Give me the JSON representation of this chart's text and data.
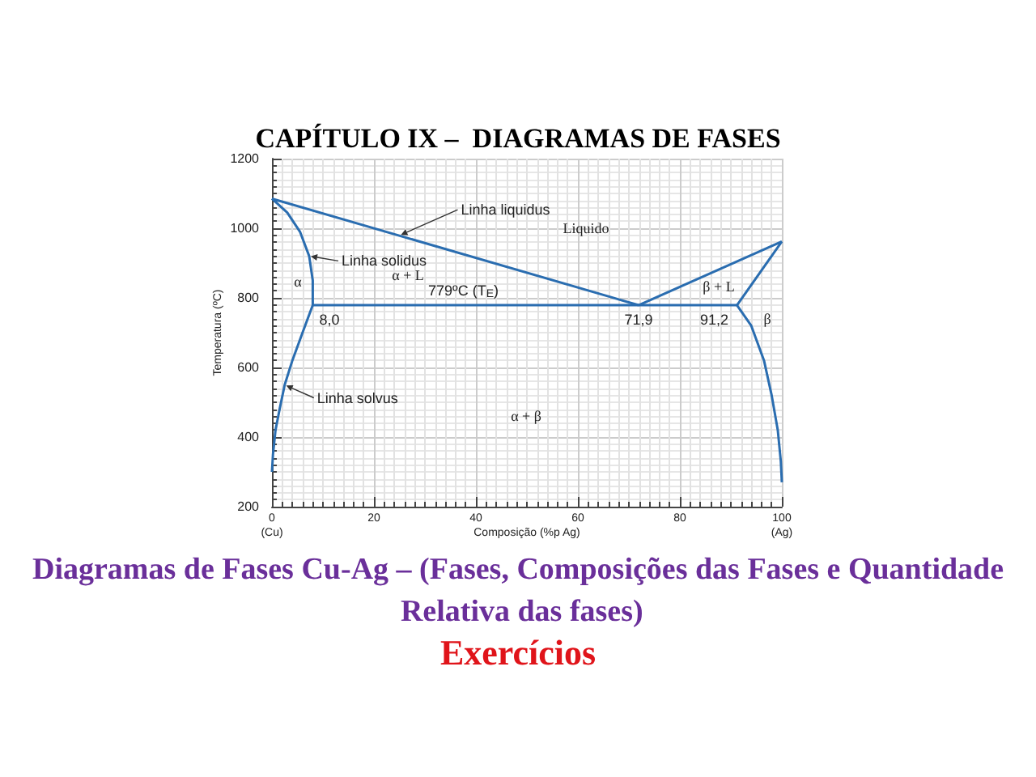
{
  "chart_data": {
    "type": "line",
    "title": "CAPÍTULO IX –  DIAGRAMAS DE FASES",
    "subtitle": "Diagramas de Fases Cu-Ag – (Fases, Composições das Fases e Quantidade Relativa das fases)",
    "xlabel": "Composição (%p Ag)",
    "ylabel": "Temperatura (ºC)",
    "xlim": [
      0,
      100
    ],
    "xticks": [
      {
        "value": 0,
        "label": "0\n(Cu)"
      },
      20,
      40,
      60,
      80,
      {
        "value": 100,
        "label": "100\n(Ag)"
      }
    ],
    "ylim": [
      200,
      1200
    ],
    "yticks": [
      200,
      400,
      600,
      800,
      1000,
      1200
    ],
    "grid": true,
    "series": [
      {
        "color": "#2a6db0",
        "x": [
          0,
          71.9
        ],
        "values": [
          1085,
          779
        ]
      },
      {
        "color": "#2a6db0",
        "x": [
          71.9,
          100
        ],
        "values": [
          779,
          962
        ]
      },
      {
        "color": "#2a6db0",
        "x": [
          0,
          3,
          5.5,
          7.3,
          8,
          8,
          6,
          4,
          2.5,
          1.5,
          0.7,
          0.2,
          0
        ],
        "values": [
          1085,
          1045,
          990,
          920,
          850,
          779,
          700,
          620,
          550,
          480,
          420,
          350,
          300
        ]
      },
      {
        "color": "#2a6db0",
        "x": [
          8,
          91.2
        ],
        "values": [
          779,
          779
        ]
      },
      {
        "color": "#2a6db0",
        "x": [
          100,
          91.2,
          94,
          96.5,
          98,
          99.2,
          99.8,
          100
        ],
        "values": [
          962,
          779,
          720,
          620,
          520,
          420,
          330,
          270
        ]
      }
    ],
    "annotations": [
      {
        "text": "Linha liquidus",
        "x": 25,
        "y": 979
      },
      "Liquido",
      {
        "text": "Linha solidus",
        "x": 7.3,
        "y": 920
      },
      "α",
      "α + L",
      {
        "text": "779ºC (T$_{E}$)",
        "x": 35,
        "y": 779
      },
      {
        "text": "8,0",
        "x": 8,
        "y": 779
      },
      {
        "text": "71,9",
        "x": 71.9,
        "y": 779
      },
      {
        "text": "91,2",
        "x": 91.2,
        "y": 779
      },
      "β + L",
      "β",
      {
        "text": "Linha solvus",
        "x": 2.5,
        "y": 550
      },
      "α + β",
      "Exercícios"
    ]
  }
}
